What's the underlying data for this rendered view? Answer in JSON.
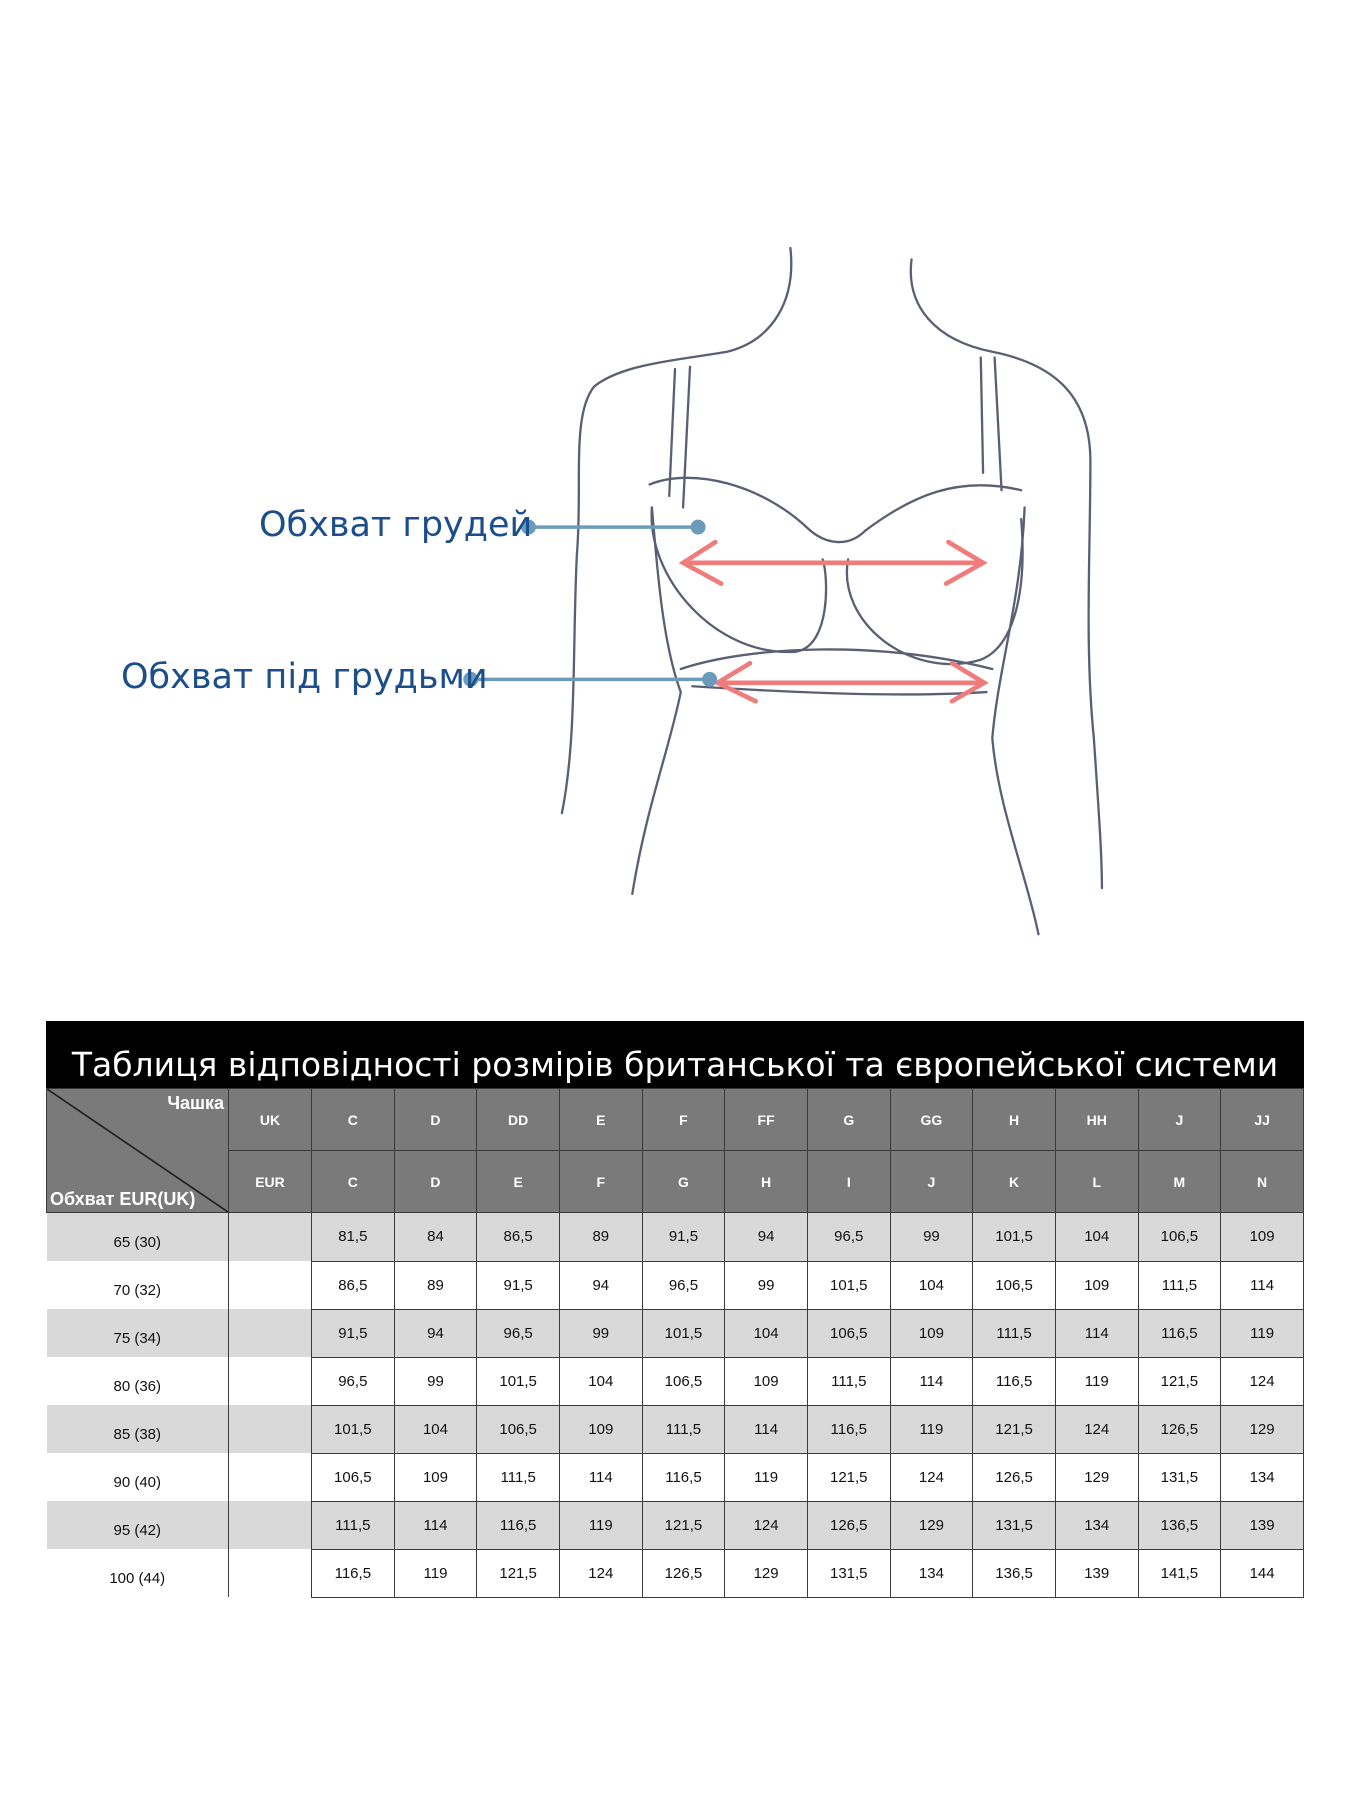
{
  "diagram": {
    "label_bust": "Обхват грудей",
    "label_underbust": "Обхват під грудьми",
    "colors": {
      "label_text": "#1b4e8a",
      "pointer_line": "#6b9bbb",
      "arrow": "#ef7b7b",
      "sketch": "#5a5f73"
    }
  },
  "table": {
    "title": "Таблиця відповідності розмірів британської та європейської системи",
    "corner_cup": "Чашка",
    "corner_girth": "Обхват EUR(UK)",
    "uk_label": "UK",
    "eur_label": "EUR",
    "uk_cups": [
      "C",
      "D",
      "DD",
      "E",
      "F",
      "FF",
      "G",
      "GG",
      "H",
      "HH",
      "J",
      "JJ"
    ],
    "eur_cups": [
      "C",
      "D",
      "E",
      "F",
      "G",
      "H",
      "I",
      "J",
      "K",
      "L",
      "M",
      "N"
    ],
    "rows": [
      {
        "band": "65 (30)",
        "values": [
          "81,5",
          "84",
          "86,5",
          "89",
          "91,5",
          "94",
          "96,5",
          "99",
          "101,5",
          "104",
          "106,5",
          "109"
        ]
      },
      {
        "band": "70 (32)",
        "values": [
          "86,5",
          "89",
          "91,5",
          "94",
          "96,5",
          "99",
          "101,5",
          "104",
          "106,5",
          "109",
          "111,5",
          "114"
        ]
      },
      {
        "band": "75 (34)",
        "values": [
          "91,5",
          "94",
          "96,5",
          "99",
          "101,5",
          "104",
          "106,5",
          "109",
          "111,5",
          "114",
          "116,5",
          "119"
        ]
      },
      {
        "band": "80 (36)",
        "values": [
          "96,5",
          "99",
          "101,5",
          "104",
          "106,5",
          "109",
          "111,5",
          "114",
          "116,5",
          "119",
          "121,5",
          "124"
        ]
      },
      {
        "band": "85 (38)",
        "values": [
          "101,5",
          "104",
          "106,5",
          "109",
          "111,5",
          "114",
          "116,5",
          "119",
          "121,5",
          "124",
          "126,5",
          "129"
        ]
      },
      {
        "band": "90 (40)",
        "values": [
          "106,5",
          "109",
          "111,5",
          "114",
          "116,5",
          "119",
          "121,5",
          "124",
          "126,5",
          "129",
          "131,5",
          "134"
        ]
      },
      {
        "band": "95 (42)",
        "values": [
          "111,5",
          "114",
          "116,5",
          "119",
          "121,5",
          "124",
          "126,5",
          "129",
          "131,5",
          "134",
          "136,5",
          "139"
        ]
      },
      {
        "band": "100 (44)",
        "values": [
          "116,5",
          "119",
          "121,5",
          "124",
          "126,5",
          "129",
          "131,5",
          "134",
          "136,5",
          "139",
          "141,5",
          "144"
        ]
      }
    ]
  }
}
